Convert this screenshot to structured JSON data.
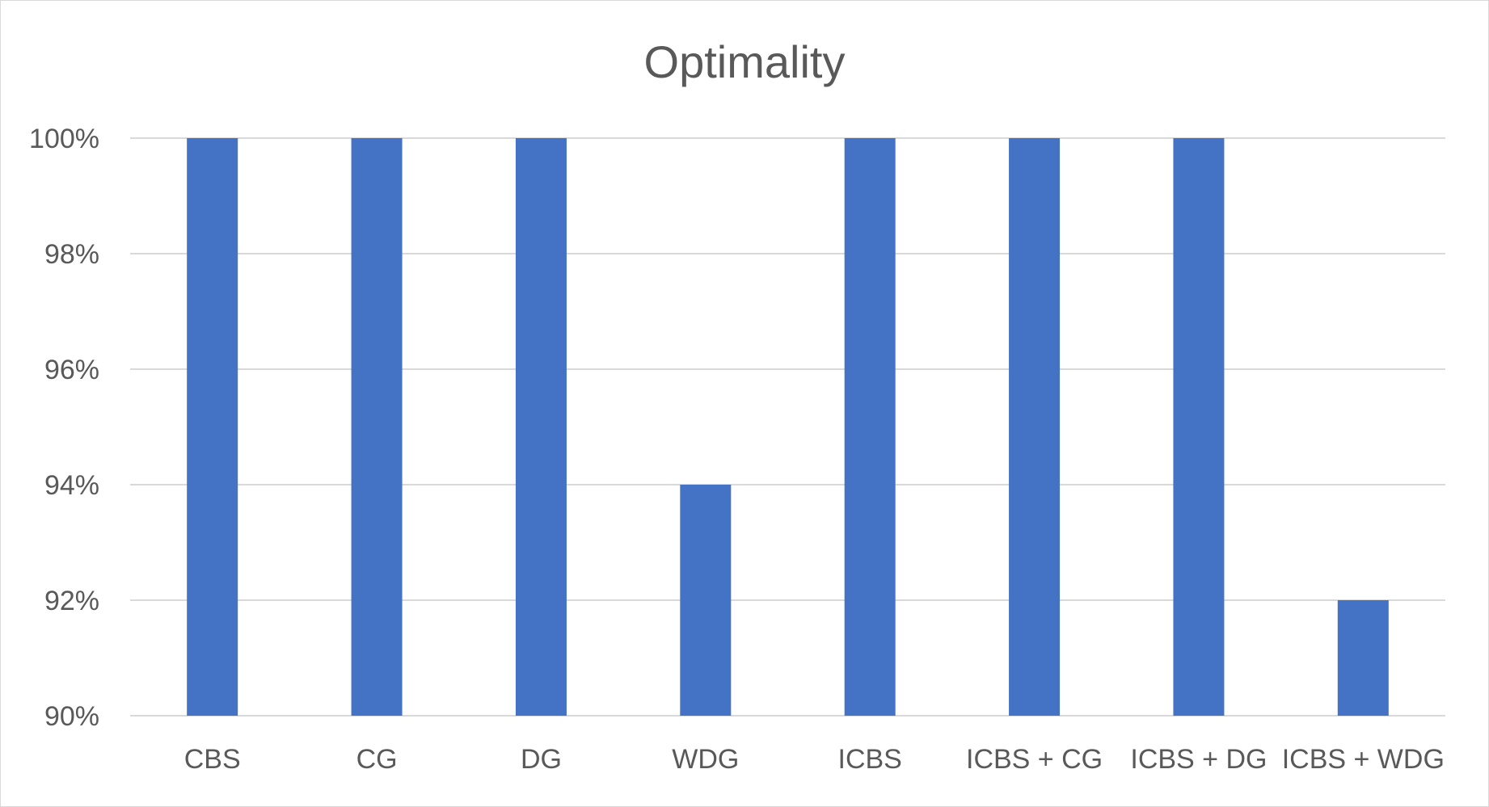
{
  "chart_data": {
    "type": "bar",
    "title": "Optimality",
    "xlabel": "",
    "ylabel": "",
    "categories": [
      "CBS",
      "CG",
      "DG",
      "WDG",
      "ICBS",
      "ICBS + CG",
      "ICBS + DG",
      "ICBS + WDG"
    ],
    "values": [
      100,
      100,
      100,
      94,
      100,
      100,
      100,
      92
    ],
    "ylim": [
      90,
      100
    ],
    "yticks": [
      90,
      92,
      94,
      96,
      98,
      100
    ],
    "ytick_labels": [
      "90%",
      "92%",
      "94%",
      "96%",
      "98%",
      "100%"
    ],
    "grid": true,
    "legend": "none",
    "bar_color": "#4472c4"
  }
}
